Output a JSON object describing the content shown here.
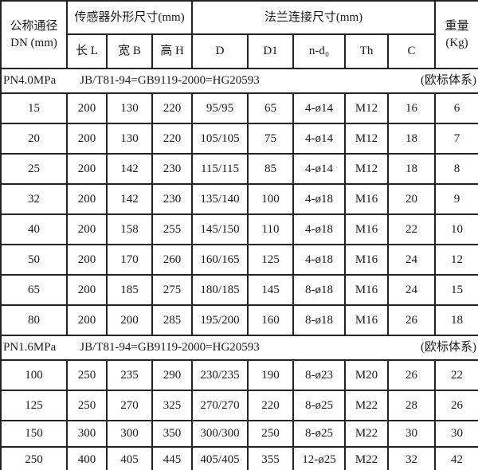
{
  "table": {
    "header": {
      "dn_line1": "公称通径",
      "dn_line2": "DN (mm)",
      "sensor_group": "传感器外形尺寸(mm)",
      "sensor_cols": [
        "长 L",
        "宽 B",
        "高 H"
      ],
      "flange_group": "法兰连接尺寸(mm)",
      "flange_cols": [
        "D",
        "D1",
        "n-d₀",
        "Th",
        "C"
      ],
      "weight_line1": "重量",
      "weight_line2": "(Kg)"
    },
    "sections": [
      {
        "pressure": "PN4.0MPa",
        "standard": "JB/T81-94=GB9119-2000=HG20593",
        "note": "(欧标体系)",
        "rows": [
          [
            "15",
            "200",
            "130",
            "220",
            "95/95",
            "65",
            "4-ø14",
            "M12",
            "16",
            "6"
          ],
          [
            "20",
            "200",
            "130",
            "220",
            "105/105",
            "75",
            "4-ø14",
            "M12",
            "18",
            "7"
          ],
          [
            "25",
            "200",
            "142",
            "230",
            "115/115",
            "85",
            "4-ø14",
            "M12",
            "18",
            "8"
          ],
          [
            "32",
            "200",
            "142",
            "230",
            "135/140",
            "100",
            "4-ø18",
            "M16",
            "20",
            "9"
          ],
          [
            "40",
            "200",
            "158",
            "255",
            "145/150",
            "110",
            "4-ø18",
            "M16",
            "22",
            "10"
          ],
          [
            "50",
            "200",
            "170",
            "260",
            "160/165",
            "125",
            "4-ø18",
            "M16",
            "24",
            "12"
          ],
          [
            "65",
            "200",
            "185",
            "275",
            "180/185",
            "145",
            "8-ø18",
            "M16",
            "24",
            "15"
          ],
          [
            "80",
            "200",
            "200",
            "285",
            "195/200",
            "160",
            "8-ø18",
            "M16",
            "26",
            "18"
          ]
        ]
      },
      {
        "pressure": "PN1.6MPa",
        "standard": "JB/T81-94=GB9119-2000=HG20593",
        "note": "(欧标体系)",
        "rows": [
          [
            "100",
            "250",
            "235",
            "290",
            "230/235",
            "190",
            "8-ø23",
            "M20",
            "26",
            "22"
          ],
          [
            "125",
            "250",
            "270",
            "325",
            "270/270",
            "220",
            "8-ø25",
            "M22",
            "28",
            "26"
          ],
          [
            "150",
            "300",
            "300",
            "350",
            "300/300",
            "250",
            "8-ø25",
            "M22",
            "30",
            "30"
          ],
          [
            "250",
            "400",
            "405",
            "445",
            "405/405",
            "355",
            "12-ø25",
            "M22",
            "32",
            "42"
          ]
        ]
      }
    ]
  }
}
